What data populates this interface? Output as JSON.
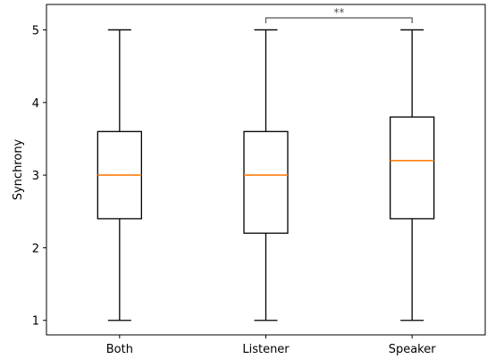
{
  "chart_data": {
    "type": "box",
    "ylabel": "Synchrony",
    "xlabel": "",
    "ylim": [
      0.8,
      5.35
    ],
    "yticks": [
      1,
      2,
      3,
      4,
      5
    ],
    "ytick_labels": [
      "1",
      "2",
      "3",
      "4",
      "5"
    ],
    "grid": false,
    "categories": [
      "Both",
      "Listener",
      "Speaker"
    ],
    "boxes": [
      {
        "category": "Both",
        "whisker_low": 1,
        "q1": 2.4,
        "median": 3,
        "q3": 3.6,
        "whisker_high": 5
      },
      {
        "category": "Listener",
        "whisker_low": 1,
        "q1": 2.2,
        "median": 3,
        "q3": 3.6,
        "whisker_high": 5
      },
      {
        "category": "Speaker",
        "whisker_low": 1,
        "q1": 2.4,
        "median": 3.2,
        "q3": 3.8,
        "whisker_high": 5
      }
    ],
    "significance": [
      {
        "from": "Listener",
        "to": "Speaker",
        "label": "**"
      }
    ],
    "colors": {
      "box": "#000000",
      "median": "#ff7f0e",
      "bracket": "#555555"
    }
  }
}
